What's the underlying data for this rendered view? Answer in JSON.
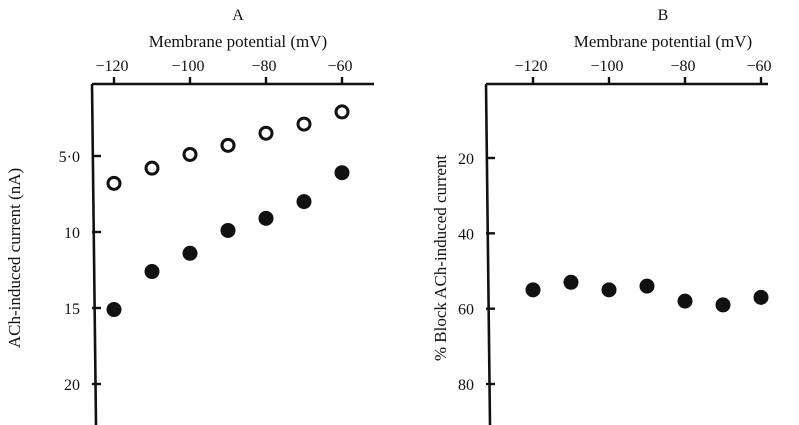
{
  "chart_data": [
    {
      "type": "scatter",
      "panel_label": "A",
      "xlabel": "Membrane potential (mV)",
      "ylabel": "ACh-induced current (nA)",
      "x_axis_position": "top",
      "y_inverted": true,
      "grid": false,
      "xlim": [
        -125,
        -55
      ],
      "ylim": [
        0,
        22
      ],
      "xticks": [
        -120,
        -100,
        -80,
        -60
      ],
      "xtick_labels": [
        "−120",
        "−100",
        "−80",
        "−60"
      ],
      "yticks": [
        5,
        10,
        15,
        20
      ],
      "ytick_labels": [
        "5·0",
        "10",
        "15",
        "20"
      ],
      "series": [
        {
          "marker": "open-circle",
          "points": [
            [
              -120,
              6.8
            ],
            [
              -110,
              5.8
            ],
            [
              -100,
              4.9
            ],
            [
              -90,
              4.3
            ],
            [
              -80,
              3.5
            ],
            [
              -70,
              2.9
            ],
            [
              -60,
              2.1
            ]
          ]
        },
        {
          "marker": "filled-circle",
          "points": [
            [
              -120,
              15.1
            ],
            [
              -110,
              12.6
            ],
            [
              -100,
              11.4
            ],
            [
              -90,
              9.9
            ],
            [
              -80,
              9.1
            ],
            [
              -70,
              8.0
            ],
            [
              -60,
              6.1
            ]
          ]
        }
      ]
    },
    {
      "type": "scatter",
      "panel_label": "B",
      "xlabel": "Membrane potential (mV)",
      "ylabel": "% Block ACh-induced current",
      "x_axis_position": "top",
      "y_inverted": true,
      "grid": false,
      "xlim": [
        -125,
        -55
      ],
      "ylim": [
        0,
        89
      ],
      "xticks": [
        -120,
        -100,
        -80,
        -60
      ],
      "xtick_labels": [
        "−120",
        "−100",
        "−80",
        "−60"
      ],
      "yticks": [
        20,
        40,
        60,
        80
      ],
      "ytick_labels": [
        "20",
        "40",
        "60",
        "80"
      ],
      "series": [
        {
          "marker": "filled-circle",
          "points": [
            [
              -120,
              55
            ],
            [
              -110,
              53
            ],
            [
              -100,
              55
            ],
            [
              -90,
              54
            ],
            [
              -80,
              58
            ],
            [
              -70,
              59
            ],
            [
              -60,
              57
            ]
          ]
        }
      ]
    }
  ]
}
